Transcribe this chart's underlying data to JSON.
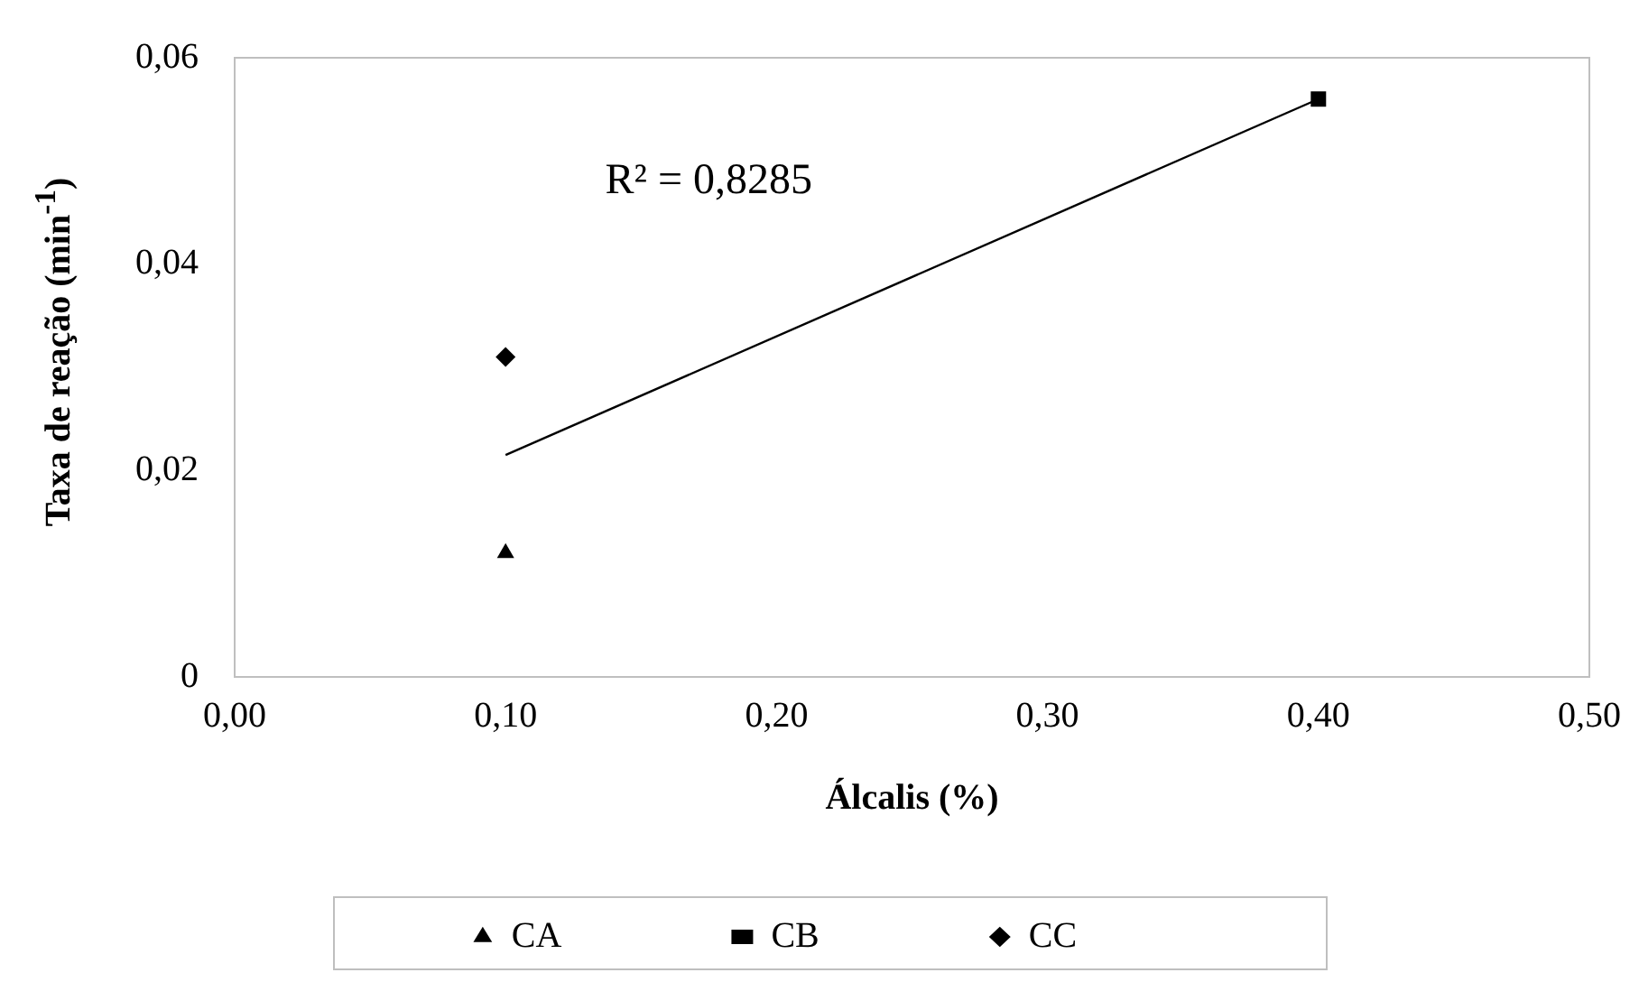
{
  "chart_data": {
    "type": "scatter",
    "xlabel": "Álcalis (%)",
    "ylabel": "Taxa de reação (min$^{-1}$)",
    "xlim": [
      0,
      0.5
    ],
    "xticks": [
      {
        "value": 0,
        "label": "0,00"
      },
      {
        "value": 0.1,
        "label": "0,10"
      },
      {
        "value": 0.2,
        "label": "0,20"
      },
      {
        "value": 0.3,
        "label": "0,30"
      },
      {
        "value": 0.4,
        "label": "0,40"
      },
      {
        "value": 0.5,
        "label": "0,50"
      }
    ],
    "ylim": [
      0,
      0.06
    ],
    "yticks": [
      0,
      {
        "value": 0.02,
        "label": "0,02"
      },
      {
        "value": 0.04,
        "label": "0,04"
      },
      {
        "value": 0.06,
        "label": "0,06"
      }
    ],
    "grid": false,
    "legend": "bottom",
    "x": [
      0.1,
      0.4
    ],
    "series": [
      {
        "name": "CA",
        "color": "#000000",
        "marker": "triangle",
        "values": [
          0.012,
          null
        ]
      },
      {
        "name": "CB",
        "color": "#000000",
        "marker": "square",
        "values": [
          null,
          0.056
        ]
      },
      {
        "name": "CC",
        "color": "#000000",
        "marker": "diamond",
        "values": [
          0.031,
          null
        ]
      },
      {
        "type": "line",
        "color": "#000000",
        "marker": "none",
        "values": [
          0.0215,
          0.056
        ]
      }
    ],
    "annotations": [
      "R² = 0,8285"
    ]
  }
}
